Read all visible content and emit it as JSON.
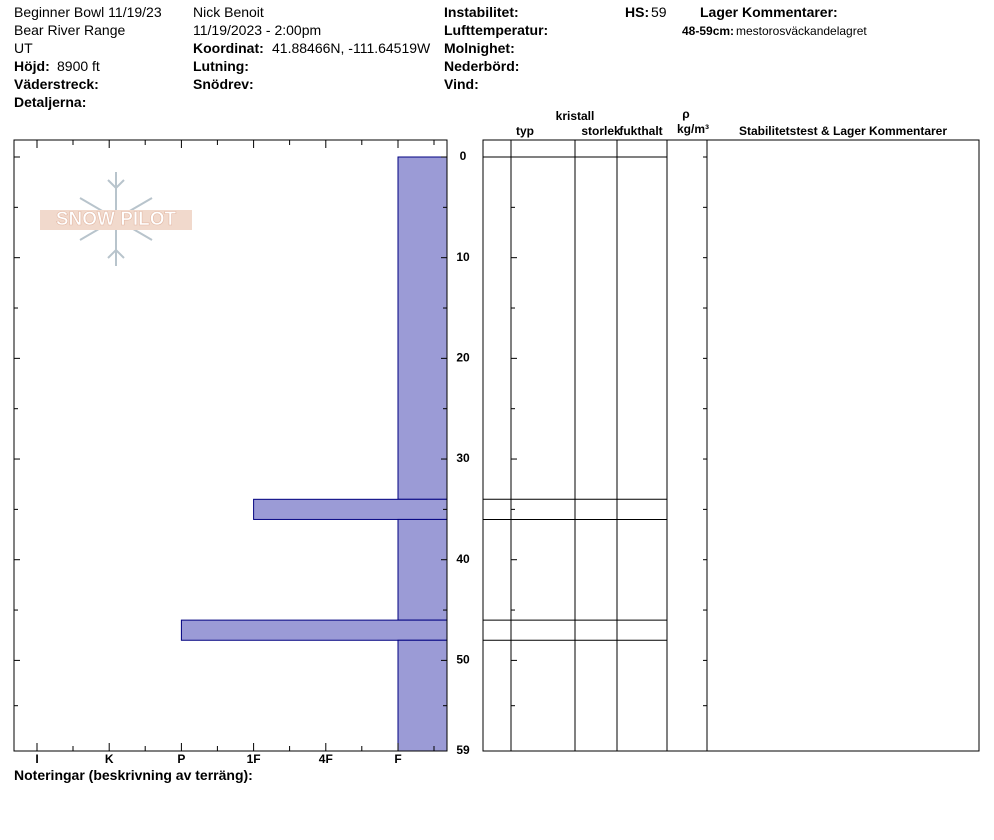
{
  "header": {
    "location": "Beginner Bowl 11/19/23",
    "range": "Bear River Range",
    "state": "UT",
    "elevation_label": "Höjd:",
    "elevation": "8900 ft",
    "aspect_label": "Väderstreck:",
    "details_label": "Detaljerna:",
    "observer": "Nick Benoit",
    "datetime": "11/19/2023 - 2:00pm",
    "coordinate_label": "Koordinat:",
    "coordinate": "41.88466N, -111.64519W",
    "slope_label": "Lutning:",
    "wind_loading_label": "Snödrev:",
    "instability_label": "Instabilitet:",
    "air_temp_label": "Lufttemperatur:",
    "sky_label": "Molnighet:",
    "precip_label": "Nederbörd:",
    "wind_label": "Vind:",
    "hs_label": "HS:",
    "hs": "59",
    "layer_comments_title": "Lager Kommentarer:",
    "layer_comment_range": "48-59cm:",
    "layer_comment": "mestorosväckandelagret"
  },
  "table": {
    "crystal": "kristall",
    "type": "typ",
    "size": "storlek",
    "moisture": "fukthalt",
    "density_symbol": "ρ",
    "density_unit": "kg/m³",
    "comments": "Stabilitetstest & Lager Kommentarer"
  },
  "logo": "SNOW PILOT",
  "notes": "Noteringar (beskrivning av terräng):",
  "chart_data": {
    "type": "snowprofile",
    "color": "#9b9bd6",
    "ylim": [
      0,
      59
    ],
    "yticks": [
      0,
      10,
      20,
      30,
      40,
      50,
      59
    ],
    "hardness_categories": [
      "I",
      "K",
      "P",
      "1F",
      "4F",
      "F"
    ],
    "layers": [
      {
        "top": 0,
        "bottom": 34,
        "hardness": "F"
      },
      {
        "top": 34,
        "bottom": 36,
        "hardness": "1F"
      },
      {
        "top": 36,
        "bottom": 46,
        "hardness": "F"
      },
      {
        "top": 46,
        "bottom": 48,
        "hardness": "P"
      },
      {
        "top": 48,
        "bottom": 59,
        "hardness": "F"
      }
    ]
  }
}
